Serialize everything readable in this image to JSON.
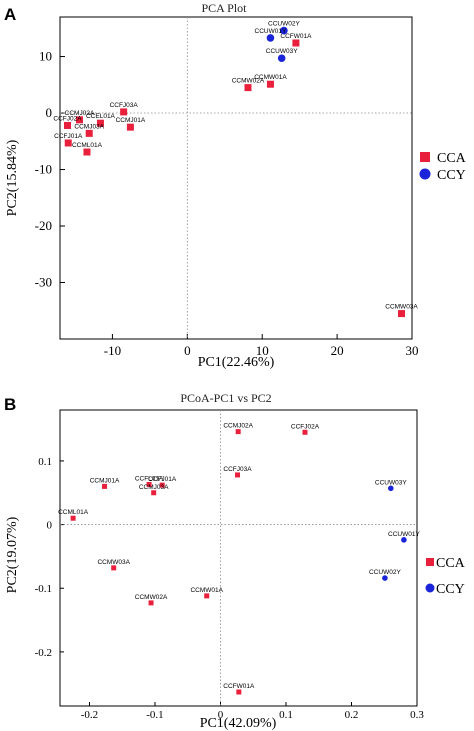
{
  "colors": {
    "CCA": "#e8203c",
    "CCY": "#1a24d8"
  },
  "chart_data": [
    {
      "type": "scatter",
      "panel": "A",
      "title": "PCA Plot",
      "xlabel": "PC1(22.46%)",
      "ylabel": "PC2(15.84%)",
      "xlim": [
        -17,
        30
      ],
      "ylim": [
        -40,
        17
      ],
      "xticks": [
        -10,
        0,
        10,
        20,
        30
      ],
      "yticks": [
        10,
        0,
        -10,
        -20,
        -30
      ],
      "xticklabels": [
        "-10",
        "0",
        "10",
        "20",
        "30"
      ],
      "yticklabels": [
        "10",
        "0",
        "-10",
        "-20",
        "-30"
      ],
      "grid": false,
      "legend": "right",
      "series": [
        {
          "name": "CCA",
          "marker": "square",
          "points": [
            {
              "label": "CCFJ03A",
              "x": -8.5,
              "y": 0.2
            },
            {
              "label": "CCMJ02A",
              "x": -14.4,
              "y": -1.2
            },
            {
              "label": "CCEL01A",
              "x": -11.6,
              "y": -1.8
            },
            {
              "label": "CCMJ01A",
              "x": -7.6,
              "y": -2.5
            },
            {
              "label": "CCFJ02A",
              "x": -16.0,
              "y": -2.2
            },
            {
              "label": "CCMJ03A",
              "x": -13.1,
              "y": -3.6
            },
            {
              "label": "CCFJ01A",
              "x": -15.9,
              "y": -5.3
            },
            {
              "label": "CCML01A",
              "x": -13.4,
              "y": -6.9
            },
            {
              "label": "CCFW01A",
              "x": 14.5,
              "y": 12.4
            },
            {
              "label": "CCMW01A",
              "x": 11.1,
              "y": 5.1
            },
            {
              "label": "CCMW02A",
              "x": 8.1,
              "y": 4.5
            },
            {
              "label": "CCMW03A",
              "x": 28.6,
              "y": -35.5
            }
          ]
        },
        {
          "name": "CCY",
          "marker": "circle",
          "points": [
            {
              "label": "CCUW02Y",
              "x": 12.9,
              "y": 14.6
            },
            {
              "label": "CCUW01Y",
              "x": 11.1,
              "y": 13.3
            },
            {
              "label": "CCUW03Y",
              "x": 12.6,
              "y": 9.7
            }
          ]
        }
      ]
    },
    {
      "type": "scatter",
      "panel": "B",
      "title": "PCoA-PC1 vs PC2",
      "xlabel": "PC1(42.09%)",
      "ylabel": "PC2(19.07%)",
      "xlim": [
        -0.245,
        0.3
      ],
      "ylim": [
        -0.285,
        0.18
      ],
      "xticks": [
        -0.2,
        -0.1,
        0,
        0.1,
        0.2,
        0.3
      ],
      "yticks": [
        0.1,
        0,
        -0.1,
        -0.2
      ],
      "xticklabels": [
        "-0.2",
        "-0.1",
        "0",
        "0.1",
        "0.2",
        "0.3"
      ],
      "yticklabels": [
        "0.1",
        "0",
        "-0.1",
        "-0.2"
      ],
      "grid": false,
      "legend": "right",
      "series": [
        {
          "name": "CCA",
          "marker": "square",
          "points": [
            {
              "label": "CCMJ02A",
              "x": 0.027,
              "y": 0.146
            },
            {
              "label": "CCFJ02A",
              "x": 0.129,
              "y": 0.145
            },
            {
              "label": "CCFJ03A",
              "x": 0.026,
              "y": 0.078
            },
            {
              "label": "CCMJ01A",
              "x": -0.177,
              "y": 0.06
            },
            {
              "label": "CCFL01A",
              "x": -0.109,
              "y": 0.063
            },
            {
              "label": "CCFJ01A",
              "x": -0.089,
              "y": 0.062
            },
            {
              "label": "CCMJ03A",
              "x": -0.102,
              "y": 0.05
            },
            {
              "label": "CCML01A",
              "x": -0.225,
              "y": 0.01
            },
            {
              "label": "CCMW03A",
              "x": -0.163,
              "y": -0.068
            },
            {
              "label": "CCMW02A",
              "x": -0.106,
              "y": -0.123
            },
            {
              "label": "CCMW01A",
              "x": -0.021,
              "y": -0.112
            },
            {
              "label": "CCFW01A",
              "x": 0.028,
              "y": -0.263
            }
          ]
        },
        {
          "name": "CCY",
          "marker": "circle",
          "points": [
            {
              "label": "CCUW03Y",
              "x": 0.26,
              "y": 0.057
            },
            {
              "label": "CCUW01Y",
              "x": 0.28,
              "y": -0.024
            },
            {
              "label": "CCUW02Y",
              "x": 0.251,
              "y": -0.084
            }
          ]
        }
      ]
    }
  ]
}
